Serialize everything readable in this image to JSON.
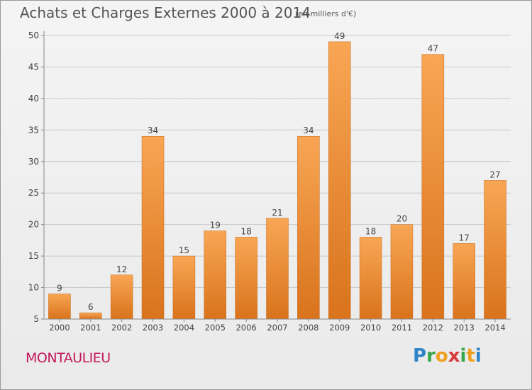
{
  "title": "Achats et Charges Externes 2000 à 2014",
  "unit_note": "(en milliers d'€)",
  "city": "MONTAULIEU",
  "brand": {
    "letters": [
      "P",
      "r",
      "o",
      "x",
      "i",
      "t",
      "i"
    ],
    "colors": [
      "#2f84c8",
      "#3aa64a",
      "#f0a020",
      "#d63a3a",
      "#3aa64a",
      "#f0a020",
      "#2f84c8"
    ]
  },
  "colors": {
    "bar_top": "#f8a654",
    "bar_bottom": "#d9731c",
    "grid": "#c8c8c8",
    "axis_text": "#444444"
  },
  "chart_data": {
    "type": "bar",
    "title": "Achats et Charges Externes 2000 à 2014",
    "xlabel": "",
    "ylabel": "",
    "categories": [
      "2000",
      "2001",
      "2002",
      "2003",
      "2004",
      "2005",
      "2006",
      "2007",
      "2008",
      "2009",
      "2010",
      "2011",
      "2012",
      "2013",
      "2014"
    ],
    "values": [
      9,
      6,
      12,
      34,
      15,
      19,
      18,
      21,
      34,
      49,
      18,
      20,
      47,
      17,
      27
    ],
    "ylim": [
      5,
      50
    ],
    "yticks": [
      5,
      10,
      15,
      20,
      25,
      30,
      35,
      40,
      45,
      50
    ],
    "grid": true,
    "data_labels": true
  }
}
